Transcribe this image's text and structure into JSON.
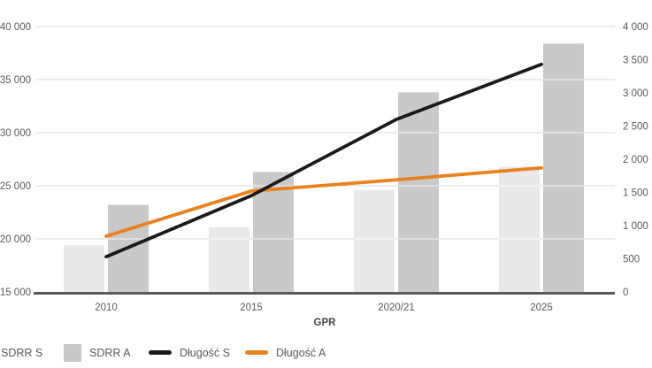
{
  "style": {
    "background": "#ffffff",
    "grid_color": "#d9d9d9",
    "grid_overlay_on_bars": "#ffffff",
    "axis_line_color": "#595959",
    "tick_text_color": "#595959",
    "xlabel_color": "#474747",
    "legend_text_color": "#595959"
  },
  "chart_data": {
    "type": "combo",
    "title": "",
    "xlabel": "GPR",
    "ylabel_left": "",
    "ylabel_right": "",
    "grid": true,
    "legend_position": "bottom",
    "categories": [
      "2010",
      "2015",
      "2020/21",
      "2025"
    ],
    "series": [
      {
        "key": "sdrr-s",
        "name": "SDRR S",
        "type": "bar",
        "axis": "left",
        "color": "#e9e9e9",
        "values": [
          19400,
          21100,
          24600,
          26800
        ]
      },
      {
        "key": "sdrr-a",
        "name": "SDRR A",
        "type": "bar",
        "axis": "left",
        "color": "#c9c9c9",
        "values": [
          23200,
          26300,
          33800,
          38400
        ]
      },
      {
        "key": "dlugosc-s",
        "name": "Długość S",
        "type": "line",
        "axis": "right",
        "color": "#1a1a1a",
        "values": [
          530,
          1450,
          2600,
          3430
        ]
      },
      {
        "key": "dlugosc-a",
        "name": "Długość A",
        "type": "line",
        "axis": "right",
        "color": "#e8821e",
        "values": [
          840,
          1520,
          1690,
          1870
        ]
      }
    ],
    "axes": {
      "left": {
        "min": 15000,
        "max": 40000,
        "step": 5000,
        "tick_labels": [
          "15 000",
          "20 000",
          "25 000",
          "30 000",
          "35 000",
          "40 000"
        ]
      },
      "right": {
        "min": 0,
        "max": 4000,
        "step": 500,
        "tick_labels": [
          "0",
          "500",
          "1 000",
          "1 500",
          "2 000",
          "2 500",
          "3 000",
          "3 500",
          "4 000"
        ]
      }
    }
  }
}
